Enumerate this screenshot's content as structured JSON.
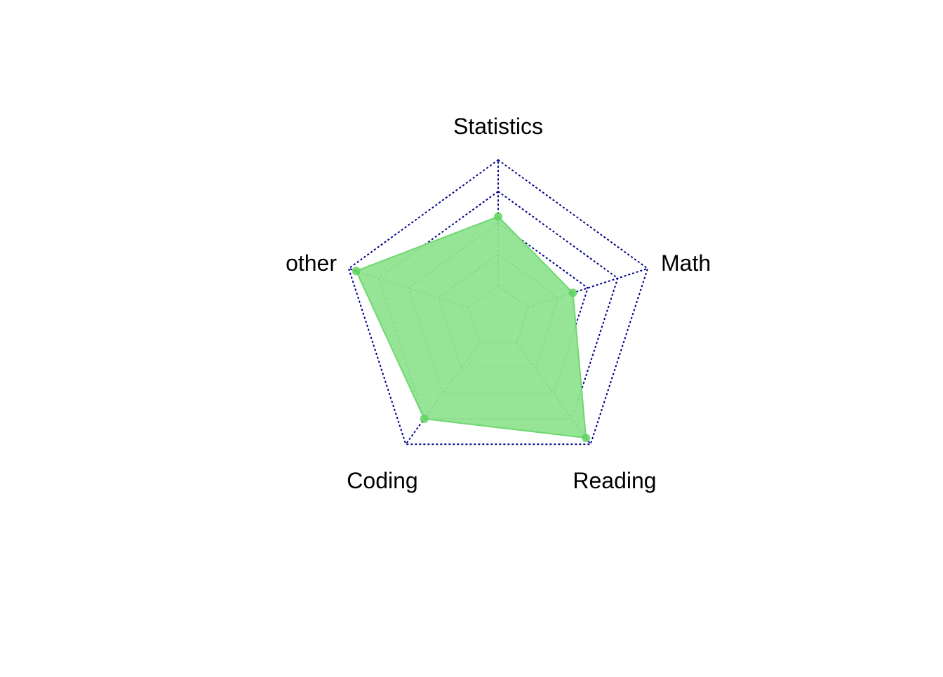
{
  "chart_data": {
    "type": "radar",
    "axes": [
      "Statistics",
      "Math",
      "Reading",
      "Coding",
      "other"
    ],
    "series": [
      {
        "values": [
          0.64,
          0.5,
          0.95,
          0.8,
          0.95
        ]
      }
    ],
    "range": [
      0,
      1
    ],
    "levels": 5,
    "colors": {
      "grid": "#00008b",
      "fill": "#90e490",
      "fill_edge": "#6fd86f",
      "point": "#5fd35f"
    }
  }
}
